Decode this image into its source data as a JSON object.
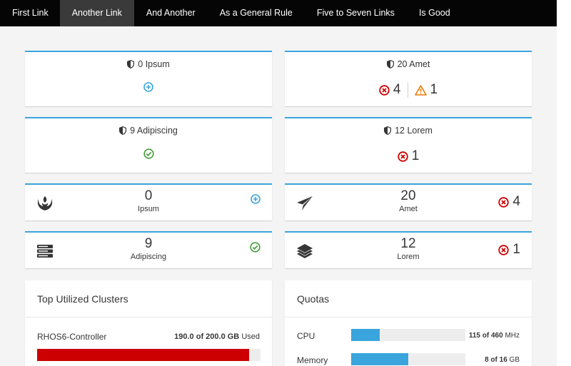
{
  "nav": {
    "items": [
      {
        "label": "First Link",
        "active": false
      },
      {
        "label": "Another Link",
        "active": true
      },
      {
        "label": "And Another",
        "active": false
      },
      {
        "label": "As a General Rule",
        "active": false
      },
      {
        "label": "Five to Seven Links",
        "active": false
      },
      {
        "label": "Is Good",
        "active": false
      }
    ]
  },
  "aggregate_cards": [
    {
      "title": "0 Ipsum",
      "icon": "shield-icon",
      "statuses": [
        {
          "icon": "add-circle-icon",
          "count": ""
        }
      ]
    },
    {
      "title": "20 Amet",
      "icon": "shield-icon",
      "statuses": [
        {
          "icon": "error-circle-icon",
          "count": "4"
        },
        {
          "icon": "warning-triangle-icon",
          "count": "1"
        }
      ]
    },
    {
      "title": "9 Adipiscing",
      "icon": "shield-icon",
      "statuses": [
        {
          "icon": "ok-circle-icon",
          "count": ""
        }
      ]
    },
    {
      "title": "12 Lorem",
      "icon": "shield-icon",
      "statuses": [
        {
          "icon": "error-circle-icon",
          "count": "1"
        }
      ]
    }
  ],
  "mini_cards": [
    {
      "count": "0",
      "label": "Ipsum",
      "icon": "rebel-alliance-icon",
      "status_icon": "add-circle-icon",
      "status_count": ""
    },
    {
      "count": "20",
      "label": "Amet",
      "icon": "paper-plane-icon",
      "status_icon": "error-circle-icon",
      "status_count": "4"
    },
    {
      "count": "9",
      "label": "Adipiscing",
      "icon": "server-icon",
      "status_icon": "ok-circle-icon",
      "status_count": ""
    },
    {
      "count": "12",
      "label": "Lorem",
      "icon": "layers-icon",
      "status_icon": "error-circle-icon",
      "status_count": "1"
    }
  ],
  "top_clusters": {
    "title": "Top Utilized Clusters",
    "items": [
      {
        "name": "RHOS6-Controller",
        "used": "190.0 of 200.0 GB",
        "suffix": "Used",
        "fraction": 0.95
      }
    ]
  },
  "quotas": {
    "title": "Quotas",
    "items": [
      {
        "label": "CPU",
        "amount": "115 of 460",
        "unit": "MHz",
        "fraction": 0.25
      },
      {
        "label": "Memory",
        "amount": "8 of 16",
        "unit": "GB",
        "fraction": 0.5
      }
    ]
  },
  "colors": {
    "accent": "#39a5dc",
    "error": "#cc0000",
    "warning": "#ec7a08",
    "ok": "#3f9c35",
    "navbar": "#050505"
  }
}
